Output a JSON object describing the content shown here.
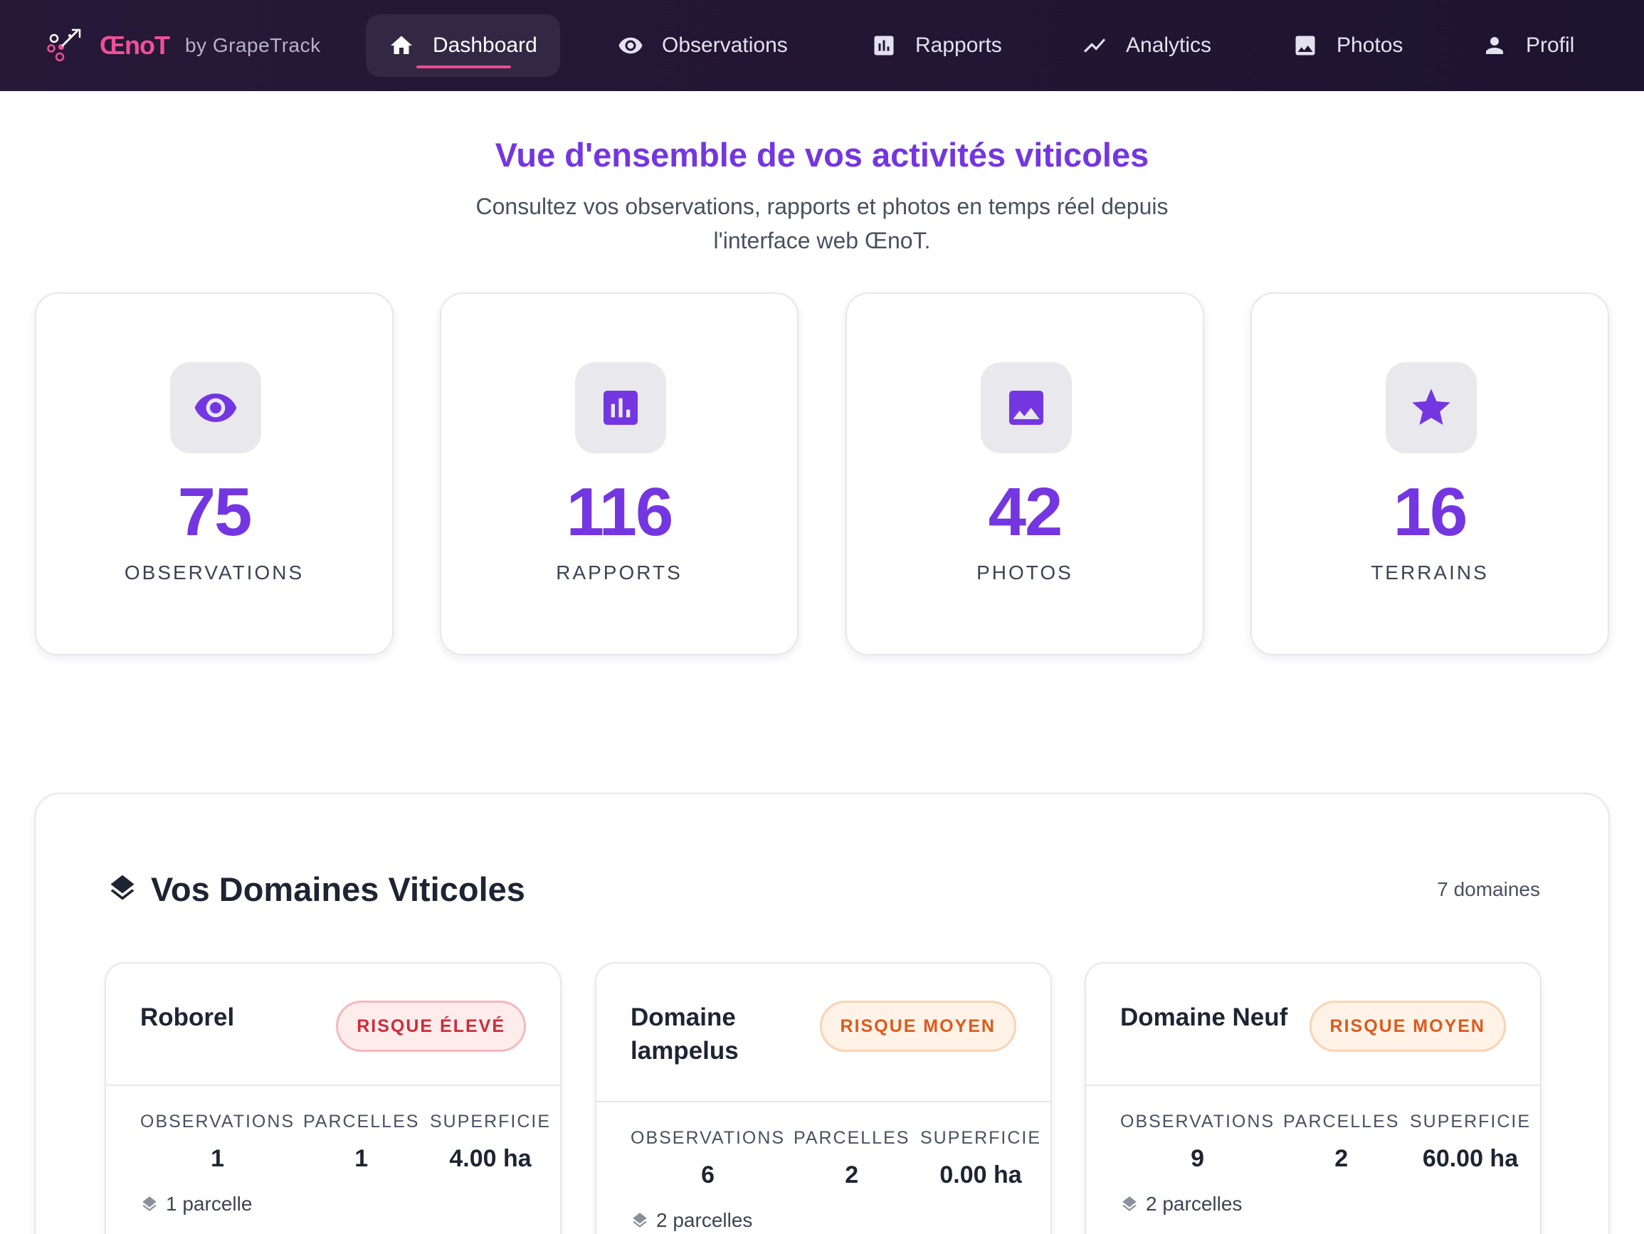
{
  "brand": {
    "name": "ŒnoT",
    "by": "by GrapeTrack"
  },
  "nav": {
    "items": [
      {
        "label": "Dashboard",
        "icon": "home-icon",
        "active": true
      },
      {
        "label": "Observations",
        "icon": "eye-icon"
      },
      {
        "label": "Rapports",
        "icon": "bar-chart-icon"
      },
      {
        "label": "Analytics",
        "icon": "trend-line-icon"
      },
      {
        "label": "Photos",
        "icon": "image-icon"
      },
      {
        "label": "Profil",
        "icon": "user-icon"
      }
    ]
  },
  "hero": {
    "title": "Vue d'ensemble de vos activités viticoles",
    "subtitle_line1": "Consultez vos observations, rapports et photos en temps réel depuis",
    "subtitle_line2": "l'interface web ŒnoT."
  },
  "stats": [
    {
      "value": "75",
      "label": "OBSERVATIONS",
      "icon": "eye-icon"
    },
    {
      "value": "116",
      "label": "RAPPORTS",
      "icon": "bar-chart-icon"
    },
    {
      "value": "42",
      "label": "PHOTOS",
      "icon": "image-icon"
    },
    {
      "value": "16",
      "label": "TERRAINS",
      "icon": "star-icon"
    }
  ],
  "domains": {
    "title": "Vos Domaines Viticoles",
    "count": "7 domaines",
    "metric_labels": {
      "observations": "OBSERVATIONS",
      "parcelles": "PARCELLES",
      "superficie": "SUPERFICIE"
    },
    "items": [
      {
        "name": "Roborel",
        "risk": "RISQUE ÉLEVÉ",
        "observations": "1",
        "parcelles": "1",
        "superficie": "4.00 ha",
        "parcel_text": "1 parcelle"
      },
      {
        "name": "Domaine lampelus",
        "risk": "RISQUE MOYEN",
        "observations": "6",
        "parcelles": "2",
        "superficie": "0.00 ha",
        "parcel_text": "2 parcelles"
      },
      {
        "name": "Domaine Neuf",
        "risk": "RISQUE MOYEN",
        "observations": "9",
        "parcelles": "2",
        "superficie": "60.00 ha",
        "parcel_text": "2 parcelles"
      }
    ]
  },
  "colors": {
    "accent": "#7436e0",
    "brand_pink": "#f0509a",
    "nav_bg": "#211633",
    "risk_high": "#cc2d3a",
    "risk_medium": "#dd5a1c"
  }
}
